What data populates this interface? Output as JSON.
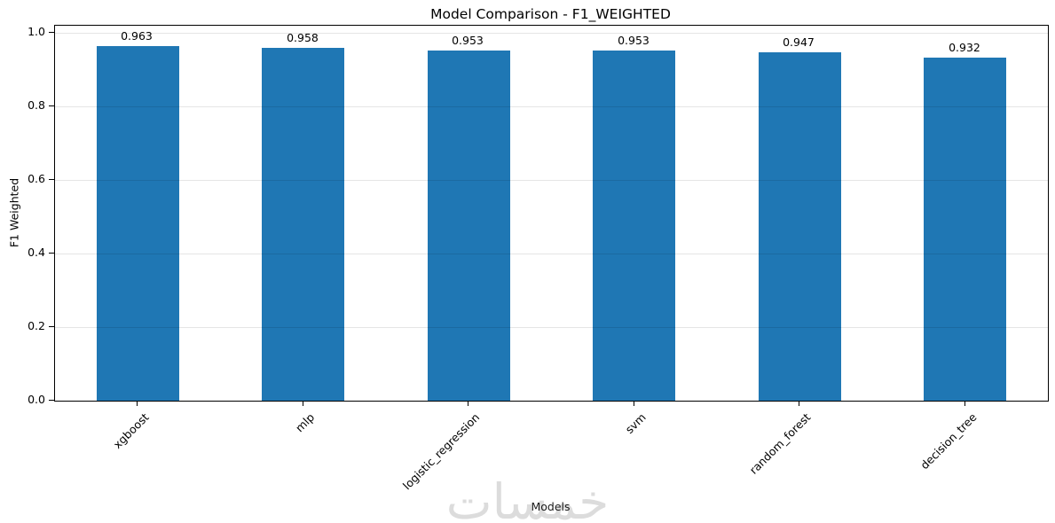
{
  "chart_data": {
    "type": "bar",
    "title": "Model Comparison - F1_WEIGHTED",
    "xlabel": "Models",
    "ylabel": "F1 Weighted",
    "categories": [
      "xgboost",
      "mlp",
      "logistic_regression",
      "svm",
      "random_forest",
      "decision_tree"
    ],
    "values": [
      0.963,
      0.958,
      0.953,
      0.953,
      0.947,
      0.932
    ],
    "bar_labels": [
      "0.963",
      "0.958",
      "0.953",
      "0.953",
      "0.947",
      "0.932"
    ],
    "yticks": [
      0.0,
      0.2,
      0.4,
      0.6,
      0.8,
      1.0
    ],
    "ytick_labels": [
      "0.0",
      "0.2",
      "0.4",
      "0.6",
      "0.8",
      "1.0"
    ],
    "ylim": [
      0,
      1.016
    ],
    "grid": "horizontal-only",
    "legend": "none",
    "bar_color": "#1f77b4",
    "grid_color": "rgba(0,0,0,0.10)"
  },
  "watermark": {
    "text": "خمسات",
    "color": "#dcdcdc"
  }
}
